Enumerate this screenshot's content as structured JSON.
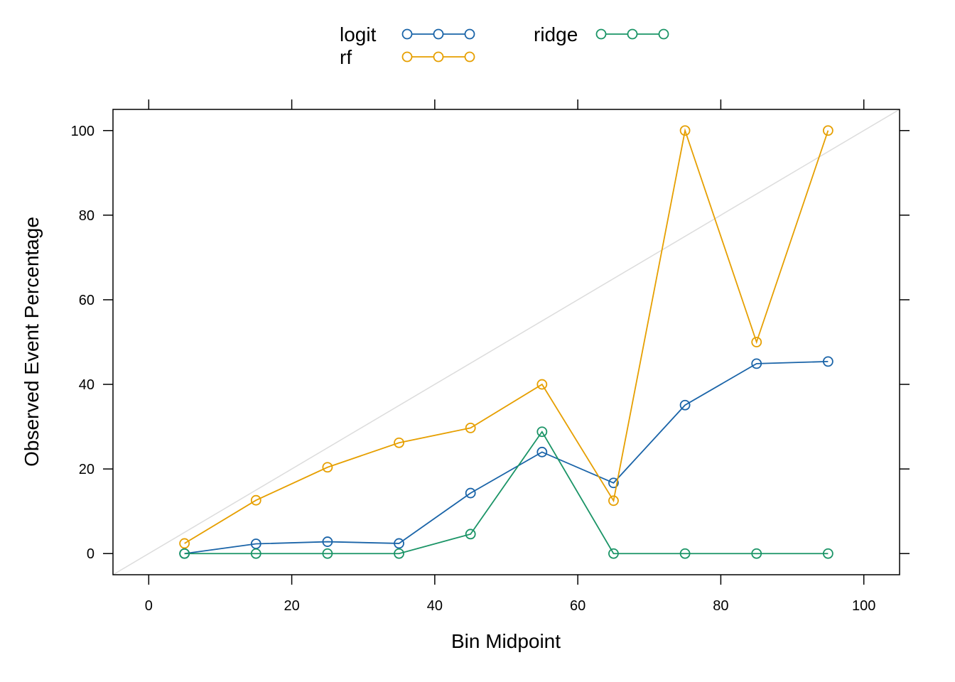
{
  "chart_data": {
    "type": "line",
    "xlabel": "Bin Midpoint",
    "ylabel": "Observed Event Percentage",
    "xlim": [
      -5,
      105
    ],
    "ylim": [
      -5,
      105
    ],
    "xticks": [
      0,
      20,
      40,
      60,
      80,
      100
    ],
    "yticks": [
      0,
      20,
      40,
      60,
      80,
      100
    ],
    "reference_line": {
      "x": [
        -5,
        105
      ],
      "y": [
        -5,
        105
      ],
      "color": "#dcdcdc"
    },
    "legend_position": "top",
    "x": [
      5,
      15,
      25,
      35,
      45,
      55,
      65,
      75,
      85,
      95
    ],
    "series": [
      {
        "name": "logit",
        "color": "#1a64a8",
        "values": [
          0,
          2.3,
          2.8,
          2.4,
          14.3,
          24.0,
          16.7,
          35.1,
          44.9,
          45.4
        ]
      },
      {
        "name": "rf",
        "color": "#e69f00",
        "values": [
          2.4,
          12.6,
          20.4,
          26.2,
          29.7,
          40.0,
          12.5,
          100.0,
          50.0,
          100.0
        ]
      },
      {
        "name": "ridge",
        "color": "#1a9466",
        "values": [
          0,
          0,
          0,
          0,
          4.6,
          28.8,
          0,
          0,
          0,
          0
        ]
      }
    ]
  }
}
